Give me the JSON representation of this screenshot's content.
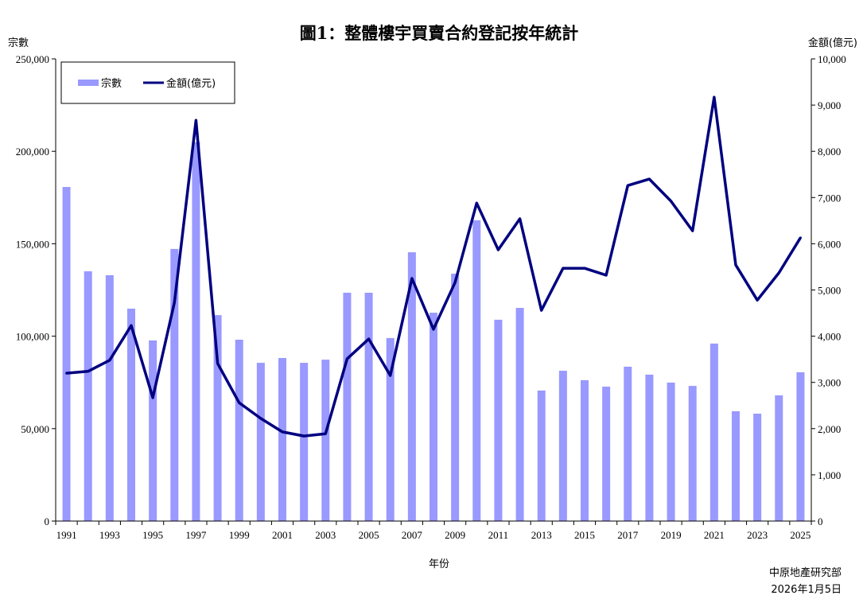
{
  "chart_data": {
    "type": "bar+line",
    "title": "圖1：整體樓宇買賣合約登記按年統計",
    "xlabel": "年份",
    "ylabel_left": "宗數",
    "ylabel_right": "金額(億元)",
    "ylim_left": [
      0,
      250000
    ],
    "ylim_right": [
      0,
      10000
    ],
    "yticks_left": [
      "0",
      "50,000",
      "100,000",
      "150,000",
      "200,000",
      "250,000"
    ],
    "yticks_right": [
      "0",
      "1,000",
      "2,000",
      "3,000",
      "4,000",
      "5,000",
      "6,000",
      "7,000",
      "8,000",
      "9,000",
      "10,000"
    ],
    "xtick_labels": [
      "1991",
      "1993",
      "1995",
      "1997",
      "1999",
      "2001",
      "2003",
      "2005",
      "2007",
      "2009",
      "2011",
      "2013",
      "2015",
      "2017",
      "2019",
      "2021",
      "2023",
      "2025"
    ],
    "grid": false,
    "legend_position": "top-left",
    "categories": [
      1991,
      1992,
      1993,
      1994,
      1995,
      1996,
      1997,
      1998,
      1999,
      2000,
      2001,
      2002,
      2003,
      2004,
      2005,
      2006,
      2007,
      2008,
      2009,
      2010,
      2011,
      2012,
      2013,
      2014,
      2015,
      2016,
      2017,
      2018,
      2019,
      2020,
      2021,
      2022,
      2023,
      2024,
      2025
    ],
    "series": [
      {
        "name": "宗數",
        "type": "bar",
        "axis": "left",
        "color": "#9999ff",
        "values": [
          180700,
          135100,
          133000,
          114900,
          97700,
          147200,
          205000,
          111400,
          98100,
          85600,
          88200,
          85600,
          87300,
          123500,
          123500,
          99000,
          145400,
          112700,
          133800,
          162700,
          108900,
          115300,
          70600,
          81300,
          76200,
          72700,
          83500,
          79200,
          74900,
          73100,
          96000,
          59400,
          58100,
          68000,
          80500
        ]
      },
      {
        "name": "金額(億元)",
        "type": "line",
        "axis": "right",
        "color": "#000080",
        "values": [
          3200,
          3240,
          3480,
          4230,
          2670,
          4730,
          8670,
          3410,
          2560,
          2220,
          1930,
          1840,
          1890,
          3510,
          3940,
          3150,
          5250,
          4150,
          5160,
          6880,
          5870,
          6540,
          4560,
          5470,
          5470,
          5320,
          7260,
          7400,
          6920,
          6280,
          9170,
          5540,
          4780,
          5370,
          6130
        ]
      }
    ]
  },
  "footer": {
    "source": "中原地產研究部",
    "date": "2026年1月5日"
  }
}
